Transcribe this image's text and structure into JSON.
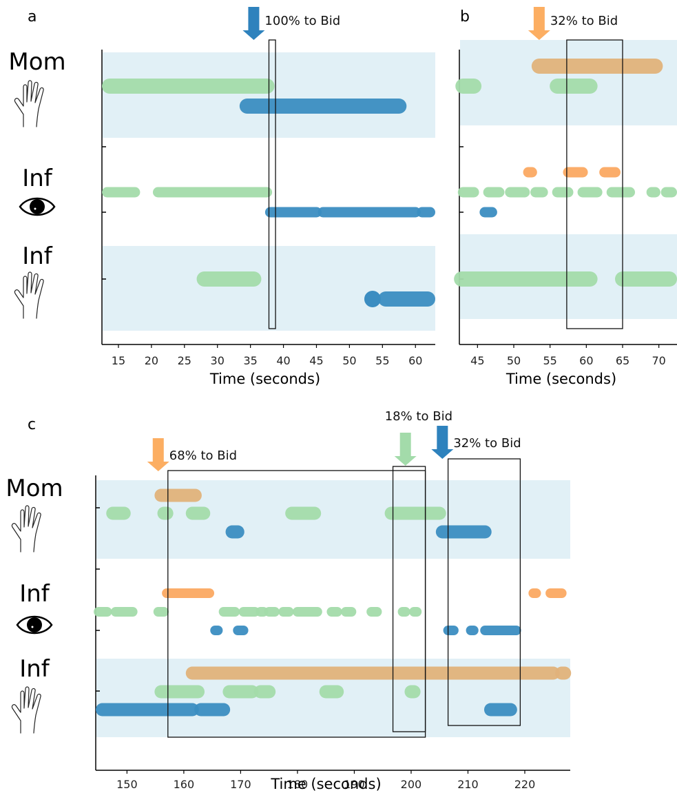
{
  "colors": {
    "blue": "#3b8dc1",
    "green": "#a3dbaa",
    "orange": "#fba962",
    "tan": "#e0b27a",
    "band": "#e1f0f6",
    "arrow_blue": "#2e82bd",
    "arrow_green": "#a3dbaa",
    "arrow_orange": "#fcae62"
  },
  "row_labels": [
    {
      "text": "Mom",
      "icon": "hand-icon"
    },
    {
      "text": "Inf",
      "icon": "eye-icon"
    },
    {
      "text": "Inf",
      "icon": "hand-icon"
    }
  ],
  "chart_data": [
    {
      "panel_label": "a",
      "type": "timeline",
      "xlabel": "Time (seconds)",
      "xlim": [
        12.5,
        63
      ],
      "xticks": [
        15,
        20,
        25,
        30,
        35,
        40,
        45,
        50,
        55,
        60
      ],
      "shaded_rows": [
        "Mom",
        "Inf hand"
      ],
      "bars": [
        {
          "row": "Mom",
          "track": 1,
          "color": "green",
          "start": 12.5,
          "end": 37.5
        },
        {
          "row": "Mom",
          "track": 2,
          "color": "blue",
          "start": 34.5,
          "end": 57.5
        },
        {
          "row": "Inf gaze",
          "track": 1,
          "color": "green",
          "start": 12.5,
          "end": 17.5
        },
        {
          "row": "Inf gaze",
          "track": 1,
          "color": "green",
          "start": 21,
          "end": 37.5
        },
        {
          "row": "Inf gaze",
          "track": 2,
          "color": "blue",
          "start": 38,
          "end": 45
        },
        {
          "row": "Inf gaze",
          "track": 2,
          "color": "blue",
          "start": 46,
          "end": 60
        },
        {
          "row": "Inf gaze",
          "track": 2,
          "color": "blue",
          "start": 61,
          "end": 63
        },
        {
          "row": "Inf hand",
          "track": 1,
          "color": "green",
          "start": 28,
          "end": 35.5
        },
        {
          "row": "Inf hand",
          "track": 2,
          "color": "blue",
          "start": 53.5,
          "end": 53.5
        },
        {
          "row": "Inf hand",
          "track": 2,
          "color": "blue",
          "start": 55.5,
          "end": 63
        }
      ],
      "windows": [
        {
          "start": 37.8,
          "end": 38.8
        }
      ],
      "arrows": [
        {
          "time": 35.5,
          "color": "blue",
          "label": "100% to Bid"
        }
      ]
    },
    {
      "panel_label": "b",
      "type": "timeline",
      "xlabel": "Time (seconds)",
      "xlim": [
        42.5,
        72.5
      ],
      "xticks": [
        45,
        50,
        55,
        60,
        65,
        70
      ],
      "shaded_rows": [
        "Mom",
        "Inf hand"
      ],
      "bars": [
        {
          "row": "Mom",
          "track": 0,
          "color": "tan",
          "start": 53.5,
          "end": 69.5
        },
        {
          "row": "Mom",
          "track": 1,
          "color": "green",
          "start": 43,
          "end": 44.5
        },
        {
          "row": "Mom",
          "track": 1,
          "color": "green",
          "start": 56,
          "end": 60.5
        },
        {
          "row": "Inf gaze",
          "track": 0,
          "color": "orange",
          "start": 52,
          "end": 52.5
        },
        {
          "row": "Inf gaze",
          "track": 0,
          "color": "orange",
          "start": 57.5,
          "end": 59.5
        },
        {
          "row": "Inf gaze",
          "track": 0,
          "color": "orange",
          "start": 62.5,
          "end": 64
        },
        {
          "row": "Inf gaze",
          "track": 1,
          "color": "green",
          "start": 43,
          "end": 44.5
        },
        {
          "row": "Inf gaze",
          "track": 1,
          "color": "green",
          "start": 46.5,
          "end": 48
        },
        {
          "row": "Inf gaze",
          "track": 1,
          "color": "green",
          "start": 49.5,
          "end": 51.5
        },
        {
          "row": "Inf gaze",
          "track": 1,
          "color": "green",
          "start": 53,
          "end": 54
        },
        {
          "row": "Inf gaze",
          "track": 1,
          "color": "green",
          "start": 56,
          "end": 57.5
        },
        {
          "row": "Inf gaze",
          "track": 1,
          "color": "green",
          "start": 59.5,
          "end": 61.5
        },
        {
          "row": "Inf gaze",
          "track": 1,
          "color": "green",
          "start": 63.5,
          "end": 66
        },
        {
          "row": "Inf gaze",
          "track": 1,
          "color": "green",
          "start": 69,
          "end": 69.5
        },
        {
          "row": "Inf gaze",
          "track": 1,
          "color": "green",
          "start": 71,
          "end": 72.5
        },
        {
          "row": "Inf gaze",
          "track": 2,
          "color": "blue",
          "start": 46,
          "end": 47
        },
        {
          "row": "Inf hand",
          "track": 1,
          "color": "green",
          "start": 42.8,
          "end": 60.5
        },
        {
          "row": "Inf hand",
          "track": 1,
          "color": "green",
          "start": 65,
          "end": 72.5
        }
      ],
      "windows": [
        {
          "start": 57.3,
          "end": 65
        }
      ],
      "arrows": [
        {
          "time": 53.5,
          "color": "orange",
          "label": "32% to Bid"
        }
      ]
    },
    {
      "panel_label": "c",
      "type": "timeline",
      "xlabel": "Time (seconds)",
      "xlim": [
        144.5,
        228
      ],
      "xticks": [
        150,
        160,
        170,
        180,
        190,
        200,
        210,
        220
      ],
      "shaded_rows": [
        "Mom",
        "Inf hand"
      ],
      "bars": [
        {
          "row": "Mom",
          "track": 0,
          "color": "tan",
          "start": 156,
          "end": 162
        },
        {
          "row": "Mom",
          "track": 1,
          "color": "green",
          "start": 147.5,
          "end": 149.5
        },
        {
          "row": "Mom",
          "track": 1,
          "color": "green",
          "start": 156.5,
          "end": 157
        },
        {
          "row": "Mom",
          "track": 1,
          "color": "green",
          "start": 161.5,
          "end": 163.5
        },
        {
          "row": "Mom",
          "track": 1,
          "color": "green",
          "start": 179,
          "end": 183
        },
        {
          "row": "Mom",
          "track": 1,
          "color": "green",
          "start": 196.5,
          "end": 205
        },
        {
          "row": "Mom",
          "track": 2,
          "color": "blue",
          "start": 168.5,
          "end": 169.5
        },
        {
          "row": "Mom",
          "track": 2,
          "color": "blue",
          "start": 205.5,
          "end": 213
        },
        {
          "row": "Inf gaze",
          "track": 0,
          "color": "orange",
          "start": 157,
          "end": 164.5
        },
        {
          "row": "Inf gaze",
          "track": 0,
          "color": "orange",
          "start": 221.5,
          "end": 222
        },
        {
          "row": "Inf gaze",
          "track": 0,
          "color": "orange",
          "start": 224.5,
          "end": 226.5
        },
        {
          "row": "Inf gaze",
          "track": 1,
          "color": "green",
          "start": 145,
          "end": 146.5
        },
        {
          "row": "Inf gaze",
          "track": 1,
          "color": "green",
          "start": 148,
          "end": 151
        },
        {
          "row": "Inf gaze",
          "track": 1,
          "color": "green",
          "start": 155.5,
          "end": 156.5
        },
        {
          "row": "Inf gaze",
          "track": 1,
          "color": "green",
          "start": 167,
          "end": 169
        },
        {
          "row": "Inf gaze",
          "track": 1,
          "color": "green",
          "start": 170.5,
          "end": 172.5
        },
        {
          "row": "Inf gaze",
          "track": 1,
          "color": "green",
          "start": 173.5,
          "end": 174
        },
        {
          "row": "Inf gaze",
          "track": 1,
          "color": "green",
          "start": 175,
          "end": 176
        },
        {
          "row": "Inf gaze",
          "track": 1,
          "color": "green",
          "start": 177.5,
          "end": 178.5
        },
        {
          "row": "Inf gaze",
          "track": 1,
          "color": "green",
          "start": 180,
          "end": 183.5
        },
        {
          "row": "Inf gaze",
          "track": 1,
          "color": "green",
          "start": 186,
          "end": 187
        },
        {
          "row": "Inf gaze",
          "track": 1,
          "color": "green",
          "start": 188.5,
          "end": 189.5
        },
        {
          "row": "Inf gaze",
          "track": 1,
          "color": "green",
          "start": 193,
          "end": 194
        },
        {
          "row": "Inf gaze",
          "track": 1,
          "color": "green",
          "start": 198.5,
          "end": 199
        },
        {
          "row": "Inf gaze",
          "track": 1,
          "color": "green",
          "start": 200.5,
          "end": 201
        },
        {
          "row": "Inf gaze",
          "track": 2,
          "color": "blue",
          "start": 165.5,
          "end": 166
        },
        {
          "row": "Inf gaze",
          "track": 2,
          "color": "blue",
          "start": 169.5,
          "end": 170.5
        },
        {
          "row": "Inf gaze",
          "track": 2,
          "color": "blue",
          "start": 206.5,
          "end": 207.5
        },
        {
          "row": "Inf gaze",
          "track": 2,
          "color": "blue",
          "start": 210.5,
          "end": 211
        },
        {
          "row": "Inf gaze",
          "track": 2,
          "color": "blue",
          "start": 213,
          "end": 218.5
        },
        {
          "row": "Inf hand",
          "track": 0,
          "color": "tan",
          "start": 161.5,
          "end": 225
        },
        {
          "row": "Inf hand",
          "track": 0,
          "color": "tan",
          "start": 226.5,
          "end": 227
        },
        {
          "row": "Inf hand",
          "track": 1,
          "color": "green",
          "start": 156,
          "end": 162.5
        },
        {
          "row": "Inf hand",
          "track": 1,
          "color": "green",
          "start": 168,
          "end": 172
        },
        {
          "row": "Inf hand",
          "track": 1,
          "color": "green",
          "start": 173.5,
          "end": 175
        },
        {
          "row": "Inf hand",
          "track": 1,
          "color": "green",
          "start": 185,
          "end": 187
        },
        {
          "row": "Inf hand",
          "track": 1,
          "color": "green",
          "start": 200,
          "end": 200.5
        },
        {
          "row": "Inf hand",
          "track": 2,
          "color": "blue",
          "start": 144.5,
          "end": 161.5
        },
        {
          "row": "Inf hand",
          "track": 2,
          "color": "blue",
          "start": 163,
          "end": 167
        },
        {
          "row": "Inf hand",
          "track": 2,
          "color": "blue",
          "start": 214,
          "end": 217.5
        }
      ],
      "windows": [
        {
          "start": 157.2,
          "end": 202.5
        },
        {
          "start": 196.8,
          "end": 202.5
        },
        {
          "start": 206.5,
          "end": 219.2
        }
      ],
      "arrows": [
        {
          "time": 155.5,
          "color": "orange",
          "label": "68% to Bid"
        },
        {
          "time": 199,
          "color": "green",
          "label": "18% to Bid"
        },
        {
          "time": 205.5,
          "color": "blue",
          "label": "32% to Bid"
        }
      ]
    }
  ]
}
